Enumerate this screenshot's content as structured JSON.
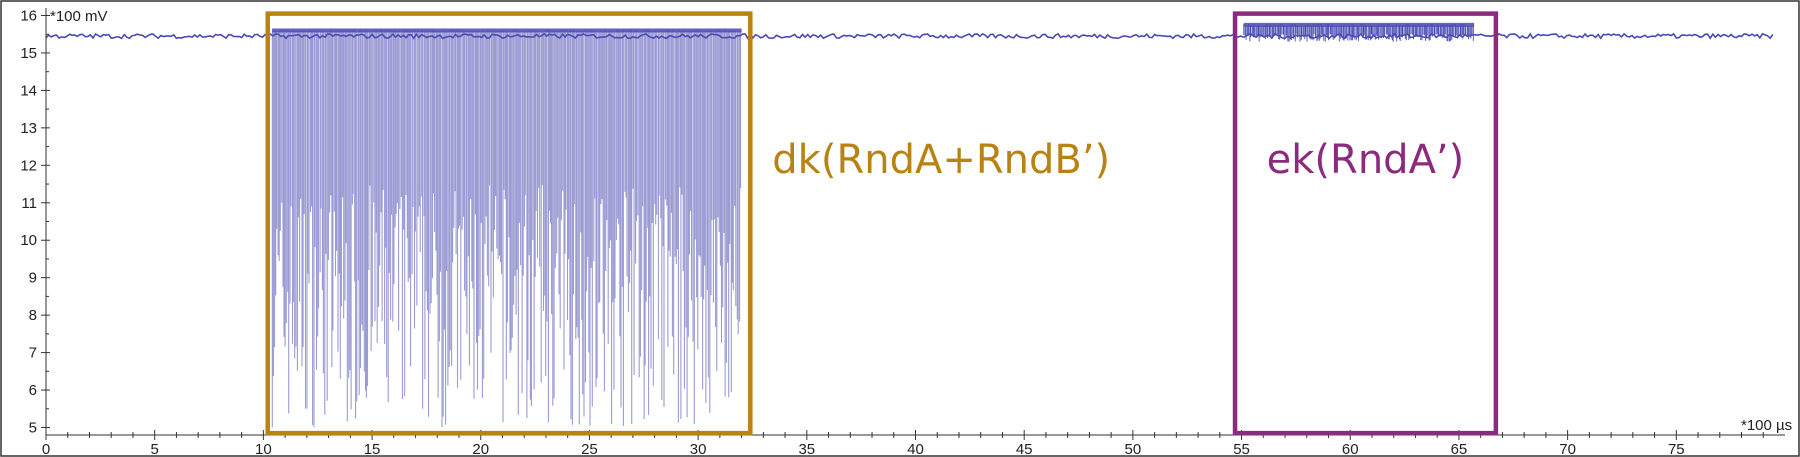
{
  "chart_data": {
    "type": "line",
    "title": "",
    "y_unit_label": "*100 mV",
    "x_unit_label": "*100 µs",
    "xlim": [
      0,
      80
    ],
    "ylim": [
      4.8,
      16.2
    ],
    "x_ticks": [
      0,
      5,
      10,
      15,
      20,
      25,
      30,
      35,
      40,
      45,
      50,
      55,
      60,
      65,
      70,
      75
    ],
    "y_ticks": [
      5,
      6,
      7,
      8,
      9,
      10,
      11,
      12,
      13,
      14,
      15,
      16
    ],
    "grid": false,
    "baseline": 15.45,
    "series": [
      {
        "color": "#4a4ab4",
        "fill_color": "#9c9cd4"
      }
    ],
    "bursts": [
      {
        "x_start": 10.4,
        "x_end": 32.0,
        "top": 15.6,
        "min_low": 5.0,
        "max_low": 11.5
      },
      {
        "x_start": 55.1,
        "x_end": 65.7,
        "top": 15.75,
        "min_low": 15.3,
        "max_low": 15.5
      }
    ],
    "annotations": [
      {
        "label": "dk(RndA+RndB’)",
        "color": "#b98314",
        "x_start": 10.2,
        "x_end": 32.4,
        "y_top": 16.05,
        "y_bottom": 4.85
      },
      {
        "label": "ek(RndA’)",
        "color": "#8c2a7e",
        "x_start": 54.7,
        "x_end": 66.7,
        "y_top": 16.05,
        "y_bottom": 4.85
      }
    ]
  }
}
